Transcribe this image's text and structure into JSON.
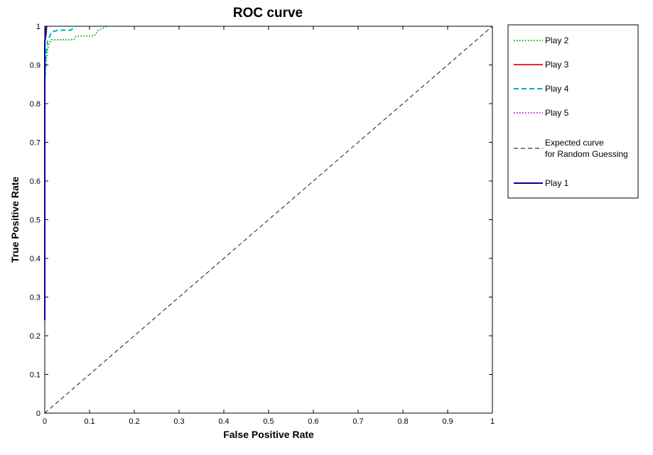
{
  "chart_data": {
    "type": "line",
    "title": "ROC curve",
    "xlabel": "False Positive Rate",
    "ylabel": "True Positive Rate",
    "xlim": [
      0,
      1
    ],
    "ylim": [
      0,
      1
    ],
    "grid": false,
    "legend_position": "outside-top-right",
    "x_ticks": [
      "0",
      "0.1",
      "0.2",
      "0.3",
      "0.4",
      "0.5",
      "0.6",
      "0.7",
      "0.8",
      "0.9",
      "1"
    ],
    "y_ticks": [
      "0",
      "0.1",
      "0.2",
      "0.3",
      "0.4",
      "0.5",
      "0.6",
      "0.7",
      "0.8",
      "0.9",
      "1"
    ],
    "series": [
      {
        "name": "Play 2",
        "color": "#009900",
        "style": "dotted",
        "points": [
          [
            0,
            0.85
          ],
          [
            0.002,
            0.89
          ],
          [
            0.004,
            0.92
          ],
          [
            0.008,
            0.95
          ],
          [
            0.015,
            0.965
          ],
          [
            0.065,
            0.965
          ],
          [
            0.07,
            0.975
          ],
          [
            0.11,
            0.975
          ],
          [
            0.12,
            0.99
          ],
          [
            0.14,
            1.0
          ]
        ]
      },
      {
        "name": "Play 3",
        "color": "#ff0000",
        "style": "solid",
        "points": [
          [
            0,
            0.96
          ],
          [
            0.003,
            0.98
          ],
          [
            0.004,
            1.0
          ]
        ]
      },
      {
        "name": "Play 4",
        "color": "#00b3b3",
        "style": "dashed",
        "points": [
          [
            0,
            0.85
          ],
          [
            0.002,
            0.92
          ],
          [
            0.006,
            0.96
          ],
          [
            0.015,
            0.985
          ],
          [
            0.03,
            0.99
          ],
          [
            0.058,
            0.99
          ],
          [
            0.07,
            1.0
          ]
        ]
      },
      {
        "name": "Play 5",
        "color": "#cc00cc",
        "style": "dotted",
        "points": [
          [
            0,
            0.97
          ],
          [
            0.003,
            0.99
          ],
          [
            0.005,
            1.0
          ]
        ]
      },
      {
        "name": "Expected curve\nfor Random Guessing",
        "color": "#000000",
        "style": "dashed-thin",
        "points": [
          [
            0,
            0
          ],
          [
            1,
            1
          ]
        ]
      },
      {
        "name": "Play 1",
        "color": "#000099",
        "style": "solid",
        "points": [
          [
            0,
            0.24
          ],
          [
            0,
            0.96
          ],
          [
            0.002,
            0.98
          ],
          [
            0.003,
            1.0
          ]
        ]
      }
    ]
  },
  "legend": {
    "entries": [
      {
        "line1": "Play 2",
        "line2": ""
      },
      {
        "line1": "Play 3",
        "line2": ""
      },
      {
        "line1": "Play 4",
        "line2": ""
      },
      {
        "line1": "Play 5",
        "line2": ""
      },
      {
        "line1": "Expected curve",
        "line2": "for Random Guessing"
      },
      {
        "line1": "Play 1",
        "line2": ""
      }
    ]
  }
}
